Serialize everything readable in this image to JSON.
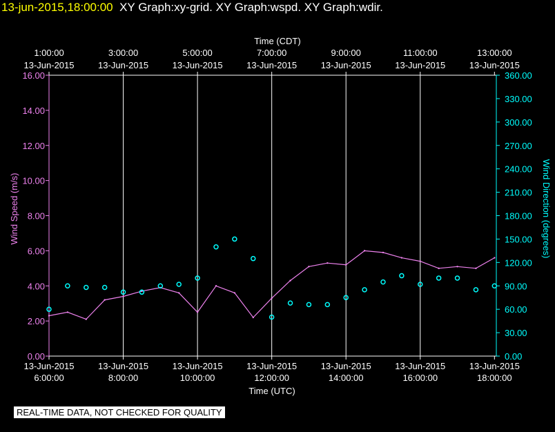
{
  "header": {
    "timestamp": "13-jun-2015,18:00:00",
    "titles": "XY Graph:xy-grid.  XY Graph:wspd.  XY Graph:wdir."
  },
  "banner": "REAL-TIME DATA, NOT CHECKED FOR QUALITY",
  "colors": {
    "wspd": "#ee82ee",
    "wdir": "#00ffff",
    "axis": "#ffffff",
    "grid": "#ffffff"
  },
  "chart_data": {
    "type": "line",
    "top_axis_label": "Time (CDT)",
    "xlabel": "Time (UTC)",
    "ylabel_left": "Wind Speed (m/s)",
    "ylabel_right": "Wind Direction (degrees)",
    "x_ticks_utc": [
      {
        "time": "6:00:00",
        "date": "13-Jun-2015"
      },
      {
        "time": "8:00:00",
        "date": "13-Jun-2015"
      },
      {
        "time": "10:00:00",
        "date": "13-Jun-2015"
      },
      {
        "time": "12:00:00",
        "date": "13-Jun-2015"
      },
      {
        "time": "14:00:00",
        "date": "13-Jun-2015"
      },
      {
        "time": "16:00:00",
        "date": "13-Jun-2015"
      },
      {
        "time": "18:00:00",
        "date": "13-Jun-2015"
      }
    ],
    "x_ticks_cdt": [
      {
        "time": "1:00:00",
        "date": "13-Jun-2015"
      },
      {
        "time": "3:00:00",
        "date": "13-Jun-2015"
      },
      {
        "time": "5:00:00",
        "date": "13-Jun-2015"
      },
      {
        "time": "7:00:00",
        "date": "13-Jun-2015"
      },
      {
        "time": "9:00:00",
        "date": "13-Jun-2015"
      },
      {
        "time": "11:00:00",
        "date": "13-Jun-2015"
      },
      {
        "time": "13:00:00",
        "date": "13-Jun-2015"
      }
    ],
    "xlim_utc_hours": [
      6,
      18.05
    ],
    "ylim_left": [
      0,
      16
    ],
    "ylim_right": [
      0,
      360
    ],
    "y_ticks_left": [
      "0.00",
      "2.00",
      "4.00",
      "6.00",
      "8.00",
      "10.00",
      "12.00",
      "14.00",
      "16.00"
    ],
    "y_ticks_right": [
      "0.00",
      "30.00",
      "60.00",
      "90.00",
      "120.00",
      "150.00",
      "180.00",
      "210.00",
      "240.00",
      "270.00",
      "300.00",
      "330.00",
      "360.00"
    ],
    "grid": "vertical",
    "series": [
      {
        "name": "wspd",
        "axis": "left",
        "style": "line",
        "x": [
          6.0,
          6.5,
          7.0,
          7.5,
          8.0,
          8.5,
          9.0,
          9.5,
          10.0,
          10.5,
          11.0,
          11.5,
          12.0,
          12.5,
          13.0,
          13.5,
          14.0,
          14.5,
          15.0,
          15.5,
          16.0,
          16.5,
          17.0,
          17.5,
          18.0
        ],
        "values": [
          2.3,
          2.5,
          2.1,
          3.2,
          3.4,
          3.7,
          3.9,
          3.6,
          2.5,
          4.0,
          3.6,
          2.2,
          3.3,
          4.3,
          5.1,
          5.3,
          5.2,
          6.0,
          5.9,
          5.6,
          5.4,
          5.0,
          5.1,
          5.0,
          5.6
        ]
      },
      {
        "name": "wdir",
        "axis": "right",
        "style": "markers",
        "x": [
          6.0,
          6.5,
          7.0,
          7.5,
          8.0,
          8.5,
          9.0,
          9.5,
          10.0,
          10.5,
          11.0,
          11.5,
          12.0,
          12.5,
          13.0,
          13.5,
          14.0,
          14.5,
          15.0,
          15.5,
          16.0,
          16.5,
          17.0,
          17.5,
          18.0
        ],
        "values": [
          60,
          90,
          88,
          88,
          82,
          82,
          90,
          92,
          100,
          140,
          150,
          125,
          50,
          68,
          66,
          66,
          75,
          85,
          95,
          103,
          92,
          100,
          100,
          85,
          90
        ]
      }
    ]
  }
}
